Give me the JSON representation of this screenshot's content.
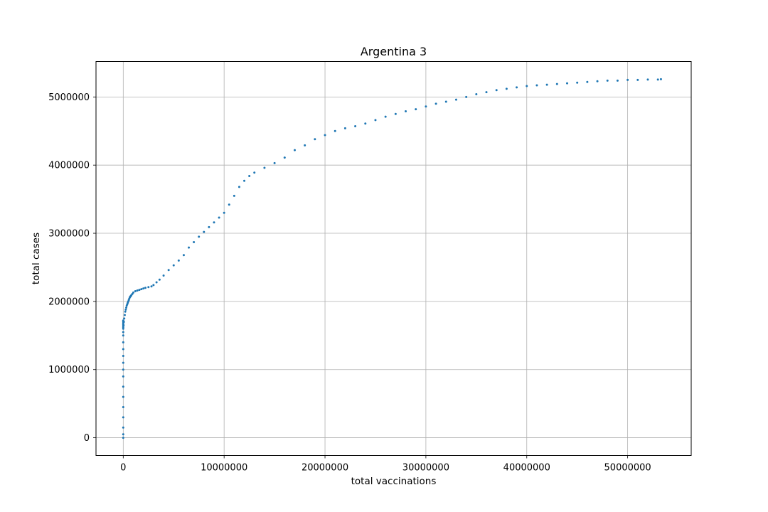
{
  "chart_data": {
    "type": "scatter",
    "title": "Argentina 3",
    "xlabel": "total vaccinations",
    "ylabel": "total cases",
    "xlim": [
      -2700000,
      56300000
    ],
    "ylim": [
      -260000,
      5520000
    ],
    "grid": true,
    "marker_color": "#1f77b4",
    "x_ticks": [
      0,
      10000000,
      20000000,
      30000000,
      40000000,
      50000000
    ],
    "x_tick_labels": [
      "0",
      "10000000",
      "20000000",
      "30000000",
      "40000000",
      "50000000"
    ],
    "y_ticks": [
      0,
      1000000,
      2000000,
      3000000,
      4000000,
      5000000
    ],
    "y_tick_labels": [
      "0",
      "1000000",
      "2000000",
      "3000000",
      "4000000",
      "5000000"
    ],
    "series": [
      {
        "x": [
          0,
          0,
          0,
          0,
          0,
          0,
          0,
          0,
          0,
          0,
          0,
          0,
          0,
          0,
          0,
          0,
          0,
          0,
          0,
          0,
          0,
          0,
          30000,
          60000,
          100000,
          150000,
          200000,
          250000,
          300000,
          350000,
          400000,
          450000,
          500000,
          550000,
          600000,
          650000,
          700000,
          750000,
          800000,
          900000,
          1000000,
          1200000,
          1400000,
          1600000,
          1800000,
          2000000,
          2200000,
          2500000,
          2800000,
          3000000,
          3300000,
          3600000,
          4000000,
          4500000,
          5000000,
          5500000,
          6000000,
          6500000,
          7000000,
          7500000,
          8000000,
          8500000,
          9000000,
          9500000,
          10000000,
          10500000,
          11000000,
          11500000,
          12000000,
          12500000,
          13000000,
          14000000,
          15000000,
          16000000,
          17000000,
          18000000,
          19000000,
          20000000,
          21000000,
          22000000,
          23000000,
          24000000,
          25000000,
          26000000,
          27000000,
          28000000,
          29000000,
          30000000,
          31000000,
          32000000,
          33000000,
          34000000,
          35000000,
          36000000,
          37000000,
          38000000,
          39000000,
          40000000,
          41000000,
          42000000,
          43000000,
          44000000,
          45000000,
          46000000,
          47000000,
          48000000,
          49000000,
          50000000,
          51000000,
          52000000,
          53000000,
          53300000
        ],
        "y": [
          0,
          50000,
          150000,
          300000,
          450000,
          600000,
          750000,
          900000,
          1000000,
          1100000,
          1200000,
          1300000,
          1400000,
          1500000,
          1550000,
          1600000,
          1620000,
          1640000,
          1660000,
          1680000,
          1700000,
          1720000,
          1650000,
          1700000,
          1750000,
          1800000,
          1850000,
          1880000,
          1910000,
          1940000,
          1960000,
          1980000,
          2000000,
          2020000,
          2040000,
          2060000,
          2070000,
          2080000,
          2090000,
          2110000,
          2130000,
          2150000,
          2160000,
          2170000,
          2180000,
          2190000,
          2200000,
          2210000,
          2220000,
          2240000,
          2280000,
          2320000,
          2380000,
          2460000,
          2530000,
          2600000,
          2680000,
          2790000,
          2870000,
          2950000,
          3020000,
          3090000,
          3160000,
          3230000,
          3300000,
          3420000,
          3550000,
          3680000,
          3770000,
          3840000,
          3890000,
          3960000,
          4030000,
          4110000,
          4220000,
          4290000,
          4380000,
          4440000,
          4500000,
          4540000,
          4570000,
          4610000,
          4660000,
          4710000,
          4750000,
          4790000,
          4820000,
          4860000,
          4900000,
          4930000,
          4960000,
          5000000,
          5040000,
          5070000,
          5100000,
          5120000,
          5140000,
          5160000,
          5170000,
          5180000,
          5190000,
          5200000,
          5210000,
          5220000,
          5230000,
          5240000,
          5240000,
          5250000,
          5250000,
          5255000,
          5255000,
          5260000
        ]
      }
    ]
  }
}
